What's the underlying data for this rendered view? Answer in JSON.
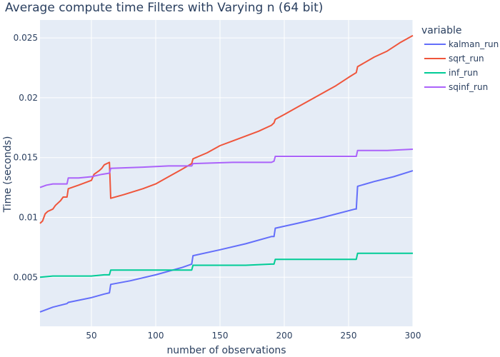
{
  "chart_data": {
    "type": "line",
    "title": "Average compute time Filters with Varying n (64 bit)",
    "xlabel": "number of observations",
    "ylabel": "Time (seconds)",
    "xlim": [
      10,
      300
    ],
    "ylim": [
      0.0009,
      0.0265
    ],
    "xticks": [
      50,
      100,
      150,
      200,
      250,
      300
    ],
    "yticks": [
      0.005,
      0.01,
      0.015,
      0.02,
      0.025
    ],
    "ytick_labels": [
      "0.005",
      "0.01",
      "0.015",
      "0.02",
      "0.025"
    ],
    "grid": true,
    "legend_title": "variable",
    "legend_position": "right",
    "series": [
      {
        "name": "kalman_run",
        "color": "#636efa",
        "points": [
          [
            10,
            0.0021
          ],
          [
            20,
            0.0025
          ],
          [
            31,
            0.0028
          ],
          [
            32,
            0.0029
          ],
          [
            50,
            0.0033
          ],
          [
            60,
            0.0036
          ],
          [
            64,
            0.0037
          ],
          [
            65,
            0.0044
          ],
          [
            80,
            0.0047
          ],
          [
            100,
            0.0052
          ],
          [
            120,
            0.0058
          ],
          [
            128,
            0.0061
          ],
          [
            129,
            0.0068
          ],
          [
            150,
            0.0073
          ],
          [
            170,
            0.0078
          ],
          [
            190,
            0.0084
          ],
          [
            192,
            0.0084
          ],
          [
            193,
            0.0091
          ],
          [
            210,
            0.0095
          ],
          [
            230,
            0.01
          ],
          [
            255,
            0.0107
          ],
          [
            256,
            0.0107
          ],
          [
            257,
            0.0126
          ],
          [
            270,
            0.013
          ],
          [
            285,
            0.0134
          ],
          [
            300,
            0.0139
          ]
        ]
      },
      {
        "name": "sqrt_run",
        "color": "#ef553b",
        "points": [
          [
            10,
            0.0095
          ],
          [
            12,
            0.0097
          ],
          [
            14,
            0.0103
          ],
          [
            16,
            0.0105
          ],
          [
            20,
            0.0107
          ],
          [
            22,
            0.011
          ],
          [
            26,
            0.0114
          ],
          [
            28,
            0.0117
          ],
          [
            31,
            0.0117
          ],
          [
            32,
            0.0124
          ],
          [
            40,
            0.0127
          ],
          [
            50,
            0.0131
          ],
          [
            52,
            0.0136
          ],
          [
            56,
            0.0139
          ],
          [
            58,
            0.0141
          ],
          [
            60,
            0.0144
          ],
          [
            64,
            0.0146
          ],
          [
            65,
            0.0116
          ],
          [
            75,
            0.0119
          ],
          [
            90,
            0.0124
          ],
          [
            100,
            0.0128
          ],
          [
            110,
            0.0134
          ],
          [
            120,
            0.014
          ],
          [
            128,
            0.0145
          ],
          [
            129,
            0.0149
          ],
          [
            140,
            0.0154
          ],
          [
            150,
            0.016
          ],
          [
            160,
            0.0164
          ],
          [
            170,
            0.0168
          ],
          [
            180,
            0.0172
          ],
          [
            190,
            0.0177
          ],
          [
            192,
            0.0179
          ],
          [
            193,
            0.0182
          ],
          [
            200,
            0.0186
          ],
          [
            210,
            0.0192
          ],
          [
            220,
            0.0198
          ],
          [
            230,
            0.0204
          ],
          [
            240,
            0.021
          ],
          [
            250,
            0.0217
          ],
          [
            256,
            0.0221
          ],
          [
            257,
            0.0226
          ],
          [
            270,
            0.0234
          ],
          [
            280,
            0.0239
          ],
          [
            290,
            0.0246
          ],
          [
            300,
            0.0252
          ]
        ]
      },
      {
        "name": "inf_run",
        "color": "#00cc96",
        "points": [
          [
            10,
            0.005
          ],
          [
            20,
            0.0051
          ],
          [
            30,
            0.0051
          ],
          [
            40,
            0.0051
          ],
          [
            50,
            0.0051
          ],
          [
            60,
            0.0052
          ],
          [
            64,
            0.0052
          ],
          [
            65,
            0.0056
          ],
          [
            80,
            0.0056
          ],
          [
            100,
            0.0056
          ],
          [
            120,
            0.0056
          ],
          [
            128,
            0.0056
          ],
          [
            129,
            0.006
          ],
          [
            150,
            0.006
          ],
          [
            170,
            0.006
          ],
          [
            190,
            0.0061
          ],
          [
            192,
            0.0061
          ],
          [
            193,
            0.0065
          ],
          [
            210,
            0.0065
          ],
          [
            230,
            0.0065
          ],
          [
            256,
            0.0065
          ],
          [
            257,
            0.007
          ],
          [
            280,
            0.007
          ],
          [
            300,
            0.007
          ]
        ]
      },
      {
        "name": "sqinf_run",
        "color": "#ab63fa",
        "points": [
          [
            10,
            0.0125
          ],
          [
            15,
            0.0127
          ],
          [
            20,
            0.0128
          ],
          [
            31,
            0.0128
          ],
          [
            32,
            0.0133
          ],
          [
            40,
            0.0133
          ],
          [
            50,
            0.0134
          ],
          [
            58,
            0.0136
          ],
          [
            64,
            0.0137
          ],
          [
            65,
            0.0141
          ],
          [
            90,
            0.0142
          ],
          [
            110,
            0.0143
          ],
          [
            128,
            0.0143
          ],
          [
            129,
            0.0145
          ],
          [
            160,
            0.0146
          ],
          [
            190,
            0.0146
          ],
          [
            192,
            0.0147
          ],
          [
            193,
            0.0151
          ],
          [
            220,
            0.0151
          ],
          [
            256,
            0.0151
          ],
          [
            257,
            0.0156
          ],
          [
            280,
            0.0156
          ],
          [
            300,
            0.0157
          ]
        ]
      }
    ]
  }
}
